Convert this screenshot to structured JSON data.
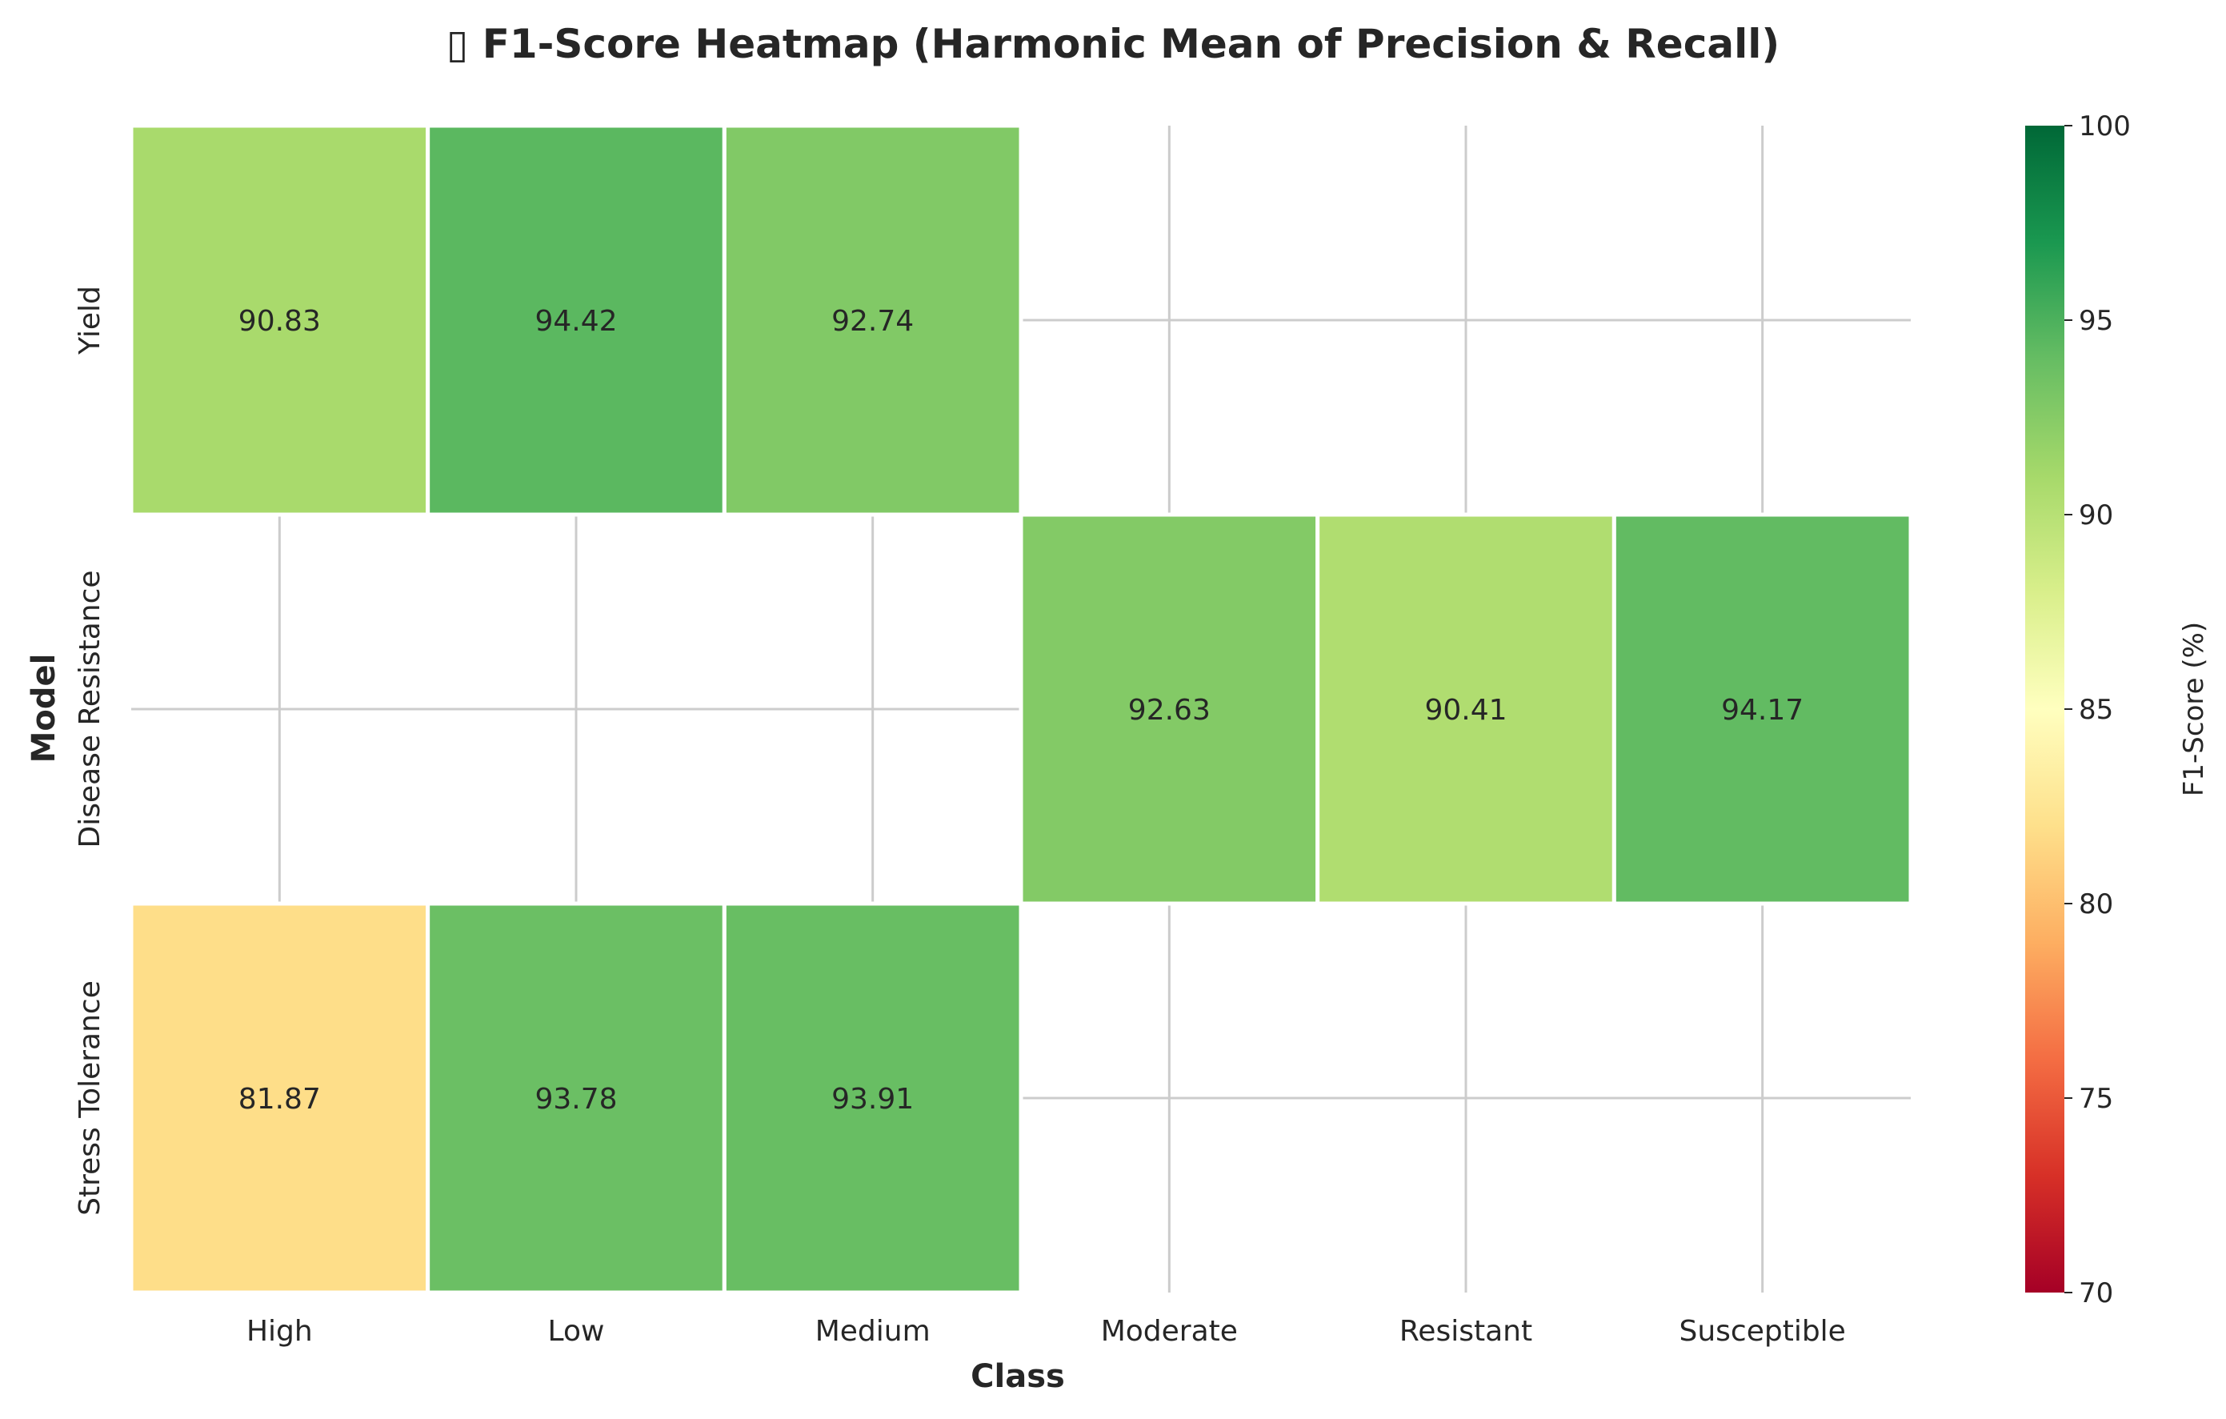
{
  "chart_data": {
    "type": "heatmap",
    "title": "▯ F1-Score Heatmap (Harmonic Mean of Precision & Recall)",
    "xlabel": "Class",
    "ylabel": "Model",
    "x_categories": [
      "High",
      "Low",
      "Medium",
      "Moderate",
      "Resistant",
      "Susceptible"
    ],
    "y_categories": [
      "Yield",
      "Disease Resistance",
      "Stress Tolerance"
    ],
    "values": [
      [
        90.83,
        94.42,
        92.74,
        null,
        null,
        null
      ],
      [
        null,
        null,
        null,
        92.63,
        90.41,
        94.17
      ],
      [
        81.87,
        93.78,
        93.91,
        null,
        null,
        null
      ]
    ],
    "colorbar": {
      "label": "F1-Score (%)",
      "range": [
        70,
        100
      ],
      "ticks": [
        70,
        75,
        80,
        85,
        90,
        95,
        100
      ],
      "colormap": "RdYlGn"
    },
    "grid": true
  }
}
